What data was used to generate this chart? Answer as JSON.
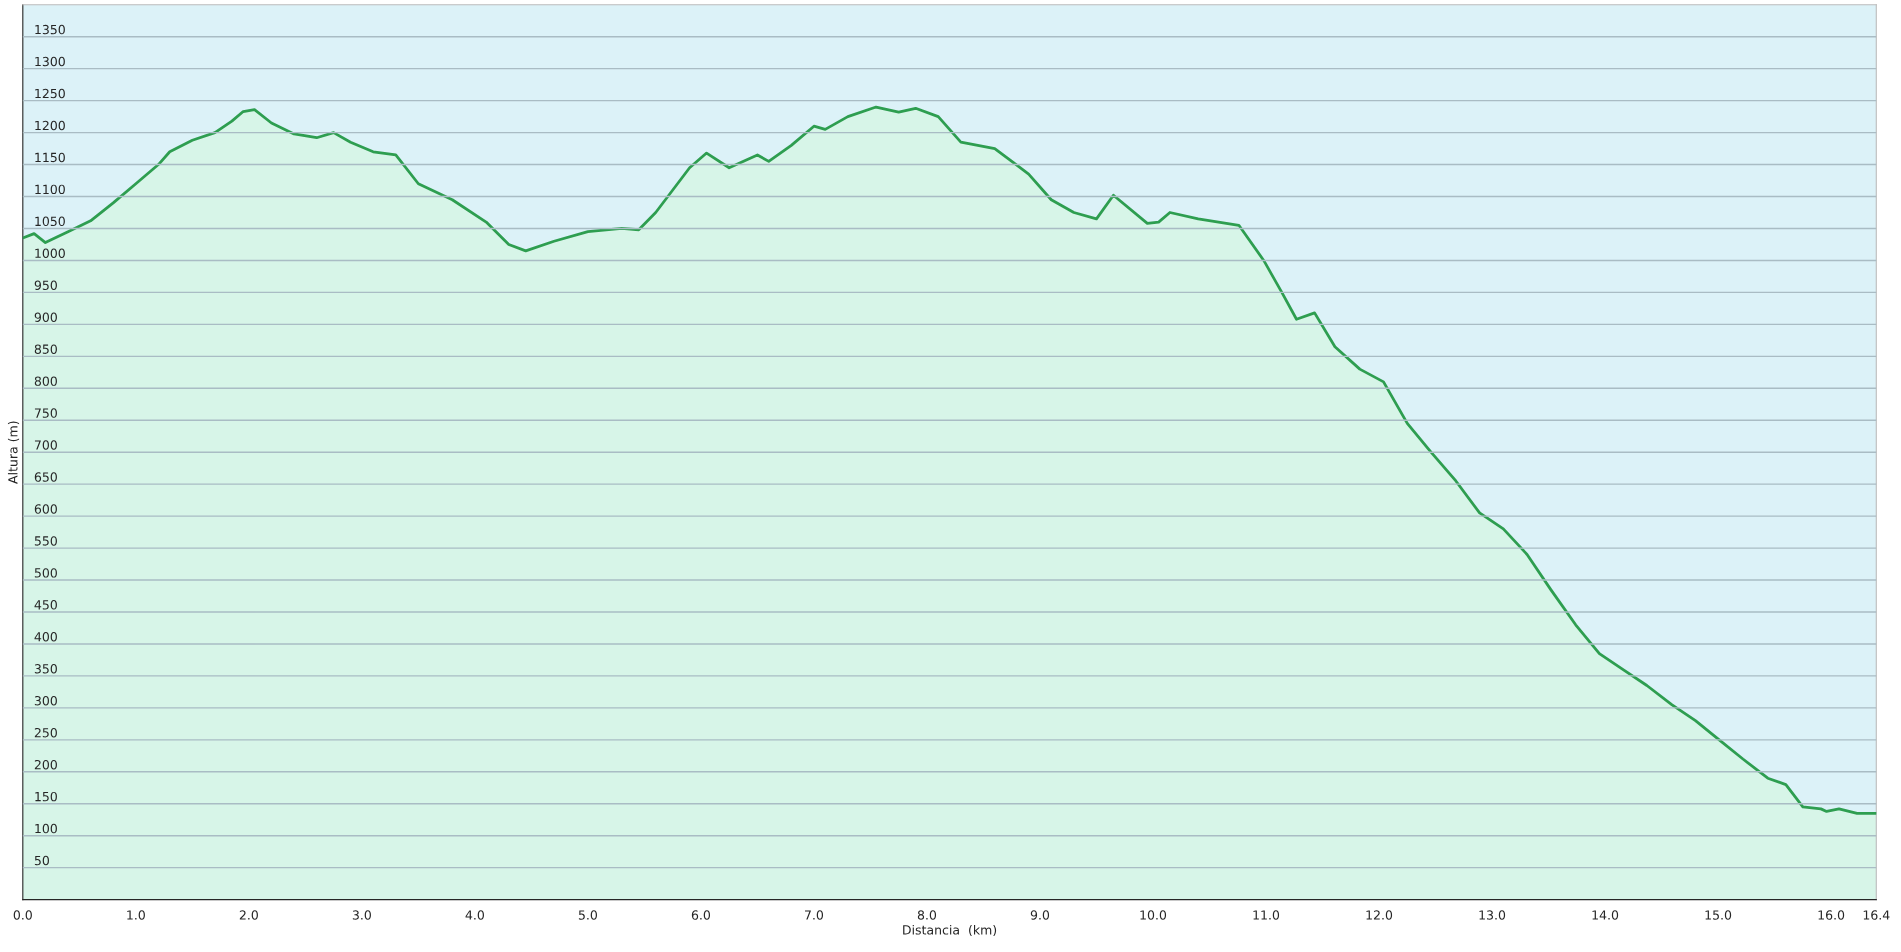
{
  "chart_data": {
    "type": "area",
    "xlabel": "Distancia  (km)",
    "ylabel": "Altura (m)",
    "x": [
      0.0,
      0.1,
      0.2,
      0.4,
      0.6,
      0.8,
      1.0,
      1.2,
      1.3,
      1.5,
      1.7,
      1.85,
      1.95,
      2.05,
      2.2,
      2.4,
      2.6,
      2.75,
      2.9,
      3.1,
      3.3,
      3.5,
      3.8,
      4.1,
      4.3,
      4.45,
      4.7,
      5.0,
      5.3,
      5.45,
      5.6,
      5.9,
      6.05,
      6.25,
      6.5,
      6.6,
      6.8,
      7.0,
      7.1,
      7.3,
      7.55,
      7.75,
      7.9,
      8.1,
      8.3,
      8.6,
      8.9,
      9.1,
      9.3,
      9.5,
      9.65,
      9.95,
      10.05,
      10.15,
      10.4,
      10.76,
      10.98,
      11.14,
      11.27,
      11.43,
      11.61,
      11.83,
      12.04,
      12.25,
      12.46,
      12.68,
      12.89,
      13.1,
      13.31,
      13.52,
      13.74,
      13.95,
      14.16,
      14.37,
      14.59,
      14.8,
      15.01,
      15.22,
      15.44,
      15.6,
      15.75,
      15.91,
      15.96,
      16.07,
      16.23,
      16.4
    ],
    "series": [
      {
        "color": "#2e9e50",
        "values": [
          1035,
          1042,
          1028,
          1045,
          1062,
          1090,
          1120,
          1150,
          1170,
          1188,
          1200,
          1218,
          1233,
          1236,
          1215,
          1198,
          1192,
          1200,
          1185,
          1170,
          1165,
          1120,
          1095,
          1060,
          1025,
          1015,
          1030,
          1045,
          1050,
          1048,
          1075,
          1145,
          1168,
          1145,
          1165,
          1155,
          1180,
          1210,
          1205,
          1225,
          1240,
          1232,
          1238,
          1225,
          1185,
          1175,
          1135,
          1095,
          1075,
          1065,
          1102,
          1058,
          1060,
          1075,
          1065,
          1055,
          1000,
          950,
          908,
          918,
          865,
          830,
          810,
          745,
          700,
          655,
          605,
          580,
          540,
          485,
          430,
          385,
          360,
          335,
          305,
          280,
          250,
          220,
          190,
          180,
          145,
          142,
          138,
          142,
          135,
          135
        ]
      }
    ],
    "xlim": [
      0,
      16.4
    ],
    "xticks": [
      {
        "value": 0,
        "label": "0.0"
      },
      {
        "value": 1,
        "label": "1.0"
      },
      {
        "value": 2,
        "label": "2.0"
      },
      {
        "value": 3,
        "label": "3.0"
      },
      {
        "value": 4,
        "label": "4.0"
      },
      {
        "value": 5,
        "label": "5.0"
      },
      {
        "value": 6,
        "label": "6.0"
      },
      {
        "value": 7,
        "label": "7.0"
      },
      {
        "value": 8,
        "label": "8.0"
      },
      {
        "value": 9,
        "label": "9.0"
      },
      {
        "value": 10,
        "label": "10.0"
      },
      {
        "value": 11,
        "label": "11.0"
      },
      {
        "value": 12,
        "label": "12.0"
      },
      {
        "value": 13,
        "label": "13.0"
      },
      {
        "value": 14,
        "label": "14.0"
      },
      {
        "value": 15,
        "label": "15.0"
      },
      {
        "value": 16,
        "label": "16.0"
      },
      16.4
    ],
    "ylim": [
      0,
      1400
    ],
    "yticks": [
      50,
      100,
      150,
      200,
      250,
      300,
      350,
      400,
      450,
      500,
      550,
      600,
      650,
      700,
      750,
      800,
      850,
      900,
      950,
      1000,
      1050,
      1100,
      1150,
      1200,
      1250,
      1300,
      1350
    ],
    "grid": "y"
  }
}
